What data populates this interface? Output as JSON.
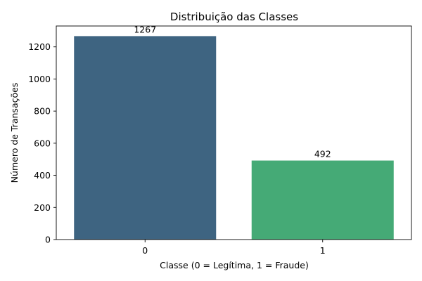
{
  "chart_data": {
    "type": "bar",
    "title": "Distribuição das Classes",
    "xlabel": "Classe (0 = Legítima, 1 = Fraude)",
    "ylabel": "Número de Transações",
    "categories": [
      "0",
      "1"
    ],
    "values": [
      1267,
      492
    ],
    "data_labels": [
      "1267",
      "492"
    ],
    "colors": [
      "#3e6481",
      "#45aa76"
    ],
    "ylim": [
      0,
      1330
    ],
    "yticks": [
      0,
      200,
      400,
      600,
      800,
      1000,
      1200
    ],
    "grid": false,
    "legend": "none"
  }
}
